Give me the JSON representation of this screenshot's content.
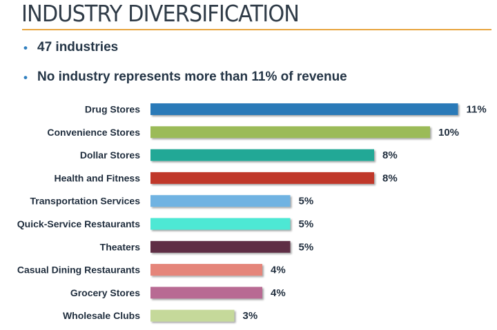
{
  "title": "INDUSTRY DIVERSIFICATION",
  "bullets": [
    "47 industries",
    "No industry represents more than 11% of revenue"
  ],
  "colors": {
    "title_rule": "#e8a33b",
    "bullet": "#2f7fbf"
  },
  "chart_data": {
    "type": "bar",
    "orientation": "horizontal",
    "categories": [
      "Drug Stores",
      "Convenience Stores",
      "Dollar Stores",
      "Health and Fitness",
      "Transportation Services",
      "Quick-Service Restaurants",
      "Theaters",
      "Casual Dining Restaurants",
      "Grocery Stores",
      "Wholesale Clubs"
    ],
    "values": [
      11,
      10,
      8,
      8,
      5,
      5,
      5,
      4,
      4,
      3
    ],
    "value_labels": [
      "11%",
      "10%",
      "8%",
      "8%",
      "5%",
      "5%",
      "5%",
      "4%",
      "4%",
      "3%"
    ],
    "bar_colors": [
      "#2a7ab8",
      "#9bbb59",
      "#20a896",
      "#c0392b",
      "#6fb3e2",
      "#4ee8d4",
      "#5e2d45",
      "#e5857a",
      "#b86b93",
      "#c5d99a"
    ],
    "unit": "%",
    "grid": false,
    "legend": "none"
  }
}
